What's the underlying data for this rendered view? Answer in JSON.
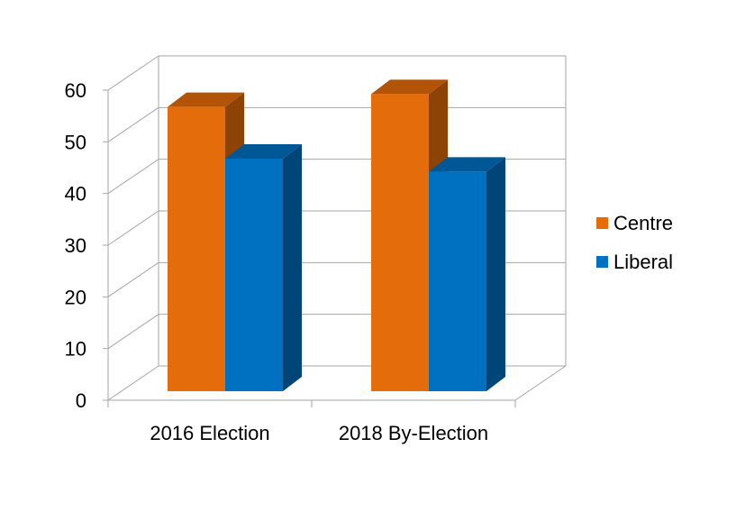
{
  "chart_data": {
    "type": "bar",
    "categories": [
      "2016 Election",
      "2018 By-Election"
    ],
    "series": [
      {
        "name": "Centre",
        "values": [
          55,
          57.5
        ],
        "color": "#E46C0A"
      },
      {
        "name": "Liberal",
        "values": [
          45,
          42.5
        ],
        "color": "#0070C0"
      }
    ],
    "ylim": [
      0,
      60
    ],
    "yticks": [
      "0",
      "10",
      "20",
      "30",
      "40",
      "50",
      "60"
    ],
    "grid": true,
    "legend_position": "right",
    "style": "3d-clustered-column"
  }
}
